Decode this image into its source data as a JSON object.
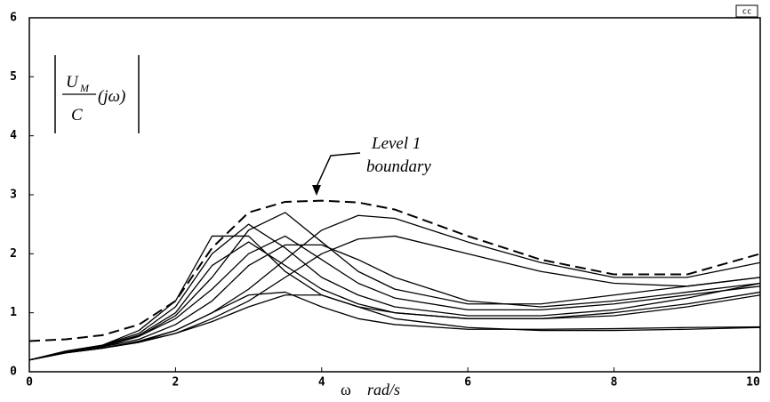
{
  "chart_data": {
    "type": "line",
    "badge": "cc",
    "ylabel": {
      "numerator": "U",
      "sub": "M",
      "denominator": "C",
      "argument": "(jω)"
    },
    "xlabel_symbol": "ω",
    "xlabel_unit": "rad/s",
    "annotation": [
      "Level 1",
      "boundary"
    ],
    "x": [
      0,
      0.5,
      1,
      1.5,
      2,
      2.5,
      3,
      3.5,
      4,
      4.5,
      5,
      6,
      7,
      8,
      9,
      10
    ],
    "xlim": [
      0,
      10
    ],
    "xticks": [
      0,
      2,
      4,
      6,
      8,
      10
    ],
    "ylim": [
      0,
      6
    ],
    "yticks": [
      0,
      1,
      2,
      3,
      4,
      5,
      6
    ],
    "series": [
      {
        "color": "#000000",
        "dashed": true,
        "values": [
          0.52,
          0.55,
          0.62,
          0.8,
          1.2,
          2.1,
          2.7,
          2.88,
          2.9,
          2.87,
          2.75,
          2.3,
          1.9,
          1.65,
          1.65,
          2.0
        ]
      },
      {
        "color": "#000000",
        "values": [
          0.2,
          0.35,
          0.45,
          0.7,
          1.2,
          2.3,
          2.3,
          1.7,
          1.3,
          1.1,
          1.0,
          0.9,
          0.9,
          0.95,
          1.1,
          1.3
        ]
      },
      {
        "color": "#000000",
        "values": [
          0.2,
          0.35,
          0.45,
          0.65,
          1.1,
          2.0,
          2.5,
          2.1,
          1.6,
          1.3,
          1.1,
          0.95,
          0.95,
          1.05,
          1.25,
          1.5
        ]
      },
      {
        "color": "#000000",
        "values": [
          0.2,
          0.33,
          0.42,
          0.6,
          0.95,
          1.6,
          2.4,
          2.7,
          2.2,
          1.7,
          1.4,
          1.15,
          1.15,
          1.3,
          1.45,
          1.6
        ]
      },
      {
        "color": "#000000",
        "values": [
          0.2,
          0.33,
          0.42,
          0.55,
          0.8,
          1.2,
          1.8,
          2.15,
          2.15,
          1.9,
          1.6,
          1.2,
          1.1,
          1.2,
          1.35,
          1.5
        ]
      },
      {
        "color": "#000000",
        "values": [
          0.2,
          0.32,
          0.4,
          0.5,
          0.65,
          0.85,
          1.1,
          1.3,
          1.3,
          1.1,
          0.9,
          0.75,
          0.7,
          0.7,
          0.72,
          0.75
        ]
      },
      {
        "color": "#000000",
        "values": [
          0.2,
          0.33,
          0.4,
          0.5,
          0.7,
          1.0,
          1.4,
          1.9,
          2.4,
          2.65,
          2.6,
          2.2,
          1.85,
          1.6,
          1.6,
          1.85
        ]
      },
      {
        "color": "#000000",
        "values": [
          0.2,
          0.32,
          0.4,
          0.5,
          0.65,
          0.9,
          1.2,
          1.6,
          2.0,
          2.25,
          2.3,
          2.0,
          1.7,
          1.5,
          1.45,
          1.6
        ]
      },
      {
        "color": "#000000",
        "values": [
          0.2,
          0.34,
          0.44,
          0.62,
          1.0,
          1.8,
          2.2,
          1.8,
          1.4,
          1.15,
          1.0,
          0.9,
          0.9,
          1.0,
          1.15,
          1.35
        ]
      },
      {
        "color": "#000000",
        "values": [
          0.2,
          0.32,
          0.4,
          0.52,
          0.7,
          1.0,
          1.3,
          1.35,
          1.1,
          0.9,
          0.8,
          0.72,
          0.72,
          0.73,
          0.75,
          0.76
        ]
      },
      {
        "color": "#000000",
        "values": [
          0.2,
          0.34,
          0.43,
          0.6,
          0.9,
          1.4,
          2.0,
          2.3,
          1.9,
          1.5,
          1.25,
          1.05,
          1.05,
          1.15,
          1.3,
          1.45
        ]
      }
    ]
  }
}
